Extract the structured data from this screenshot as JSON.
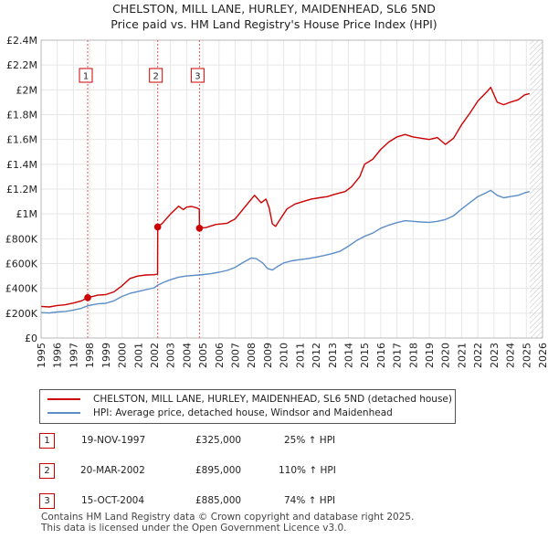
{
  "chart_data": {
    "type": "line",
    "title": "CHELSTON, MILL LANE, HURLEY, MAIDENHEAD, SL6 5ND",
    "subtitle": "Price paid vs. HM Land Registry's House Price Index (HPI)",
    "xlim": [
      1995,
      2026
    ],
    "ylim": [
      0,
      2400000
    ],
    "y_ticks": [
      0,
      200000,
      400000,
      600000,
      800000,
      1000000,
      1200000,
      1400000,
      1600000,
      1800000,
      2000000,
      2200000,
      2400000
    ],
    "y_tick_labels": [
      "£0",
      "£200K",
      "£400K",
      "£600K",
      "£800K",
      "£1M",
      "£1.2M",
      "£1.4M",
      "£1.6M",
      "£1.8M",
      "£2M",
      "£2.2M",
      "£2.4M"
    ],
    "x_ticks": [
      1995,
      1996,
      1997,
      1998,
      1999,
      2000,
      2001,
      2002,
      2003,
      2004,
      2005,
      2006,
      2007,
      2008,
      2009,
      2010,
      2011,
      2012,
      2013,
      2014,
      2015,
      2016,
      2017,
      2018,
      2019,
      2020,
      2021,
      2022,
      2023,
      2024,
      2025,
      2026
    ],
    "grid": true,
    "series": [
      {
        "name": "CHELSTON, MILL LANE, HURLEY, MAIDENHEAD, SL6 5ND (detached house)",
        "color": "#cc0000",
        "points": [
          [
            1995.0,
            255000
          ],
          [
            1995.5,
            250000
          ],
          [
            1996.0,
            262000
          ],
          [
            1996.5,
            268000
          ],
          [
            1997.0,
            282000
          ],
          [
            1997.5,
            300000
          ],
          [
            1997.88,
            325000
          ],
          [
            1998.5,
            345000
          ],
          [
            1999.0,
            350000
          ],
          [
            1999.5,
            372000
          ],
          [
            2000.0,
            420000
          ],
          [
            2000.5,
            480000
          ],
          [
            2001.0,
            500000
          ],
          [
            2001.5,
            508000
          ],
          [
            2002.0,
            510000
          ],
          [
            2002.2,
            515000
          ],
          [
            2002.21,
            895000
          ],
          [
            2002.5,
            925000
          ],
          [
            2003.0,
            1000000
          ],
          [
            2003.5,
            1062000
          ],
          [
            2003.8,
            1035000
          ],
          [
            2004.0,
            1055000
          ],
          [
            2004.3,
            1060000
          ],
          [
            2004.6,
            1050000
          ],
          [
            2004.78,
            1038000
          ],
          [
            2004.79,
            885000
          ],
          [
            2005.2,
            890000
          ],
          [
            2005.8,
            915000
          ],
          [
            2006.5,
            925000
          ],
          [
            2007.0,
            960000
          ],
          [
            2007.5,
            1040000
          ],
          [
            2008.0,
            1120000
          ],
          [
            2008.2,
            1150000
          ],
          [
            2008.6,
            1090000
          ],
          [
            2008.9,
            1120000
          ],
          [
            2009.1,
            1050000
          ],
          [
            2009.3,
            920000
          ],
          [
            2009.5,
            900000
          ],
          [
            2009.7,
            940000
          ],
          [
            2010.2,
            1040000
          ],
          [
            2010.7,
            1080000
          ],
          [
            2011.2,
            1100000
          ],
          [
            2011.7,
            1120000
          ],
          [
            2012.2,
            1130000
          ],
          [
            2012.7,
            1140000
          ],
          [
            2013.2,
            1160000
          ],
          [
            2013.8,
            1180000
          ],
          [
            2014.2,
            1220000
          ],
          [
            2014.7,
            1300000
          ],
          [
            2015.0,
            1400000
          ],
          [
            2015.5,
            1440000
          ],
          [
            2016.0,
            1520000
          ],
          [
            2016.5,
            1580000
          ],
          [
            2017.0,
            1620000
          ],
          [
            2017.5,
            1640000
          ],
          [
            2018.0,
            1620000
          ],
          [
            2018.5,
            1610000
          ],
          [
            2019.0,
            1600000
          ],
          [
            2019.5,
            1615000
          ],
          [
            2020.0,
            1560000
          ],
          [
            2020.5,
            1610000
          ],
          [
            2021.0,
            1720000
          ],
          [
            2021.5,
            1810000
          ],
          [
            2022.0,
            1910000
          ],
          [
            2022.6,
            1990000
          ],
          [
            2022.8,
            2020000
          ],
          [
            2023.2,
            1900000
          ],
          [
            2023.6,
            1880000
          ],
          [
            2024.0,
            1900000
          ],
          [
            2024.5,
            1920000
          ],
          [
            2024.9,
            1960000
          ],
          [
            2025.2,
            1970000
          ]
        ]
      },
      {
        "name": "HPI: Average price, detached house, Windsor and Maidenhead",
        "color": "#5b8ec7",
        "points": [
          [
            1995.0,
            205000
          ],
          [
            1995.5,
            202000
          ],
          [
            1996.0,
            210000
          ],
          [
            1996.5,
            214000
          ],
          [
            1997.0,
            225000
          ],
          [
            1997.5,
            240000
          ],
          [
            1997.88,
            260000
          ],
          [
            1998.5,
            275000
          ],
          [
            1999.0,
            280000
          ],
          [
            1999.5,
            300000
          ],
          [
            2000.0,
            335000
          ],
          [
            2000.5,
            360000
          ],
          [
            2001.0,
            375000
          ],
          [
            2001.5,
            390000
          ],
          [
            2002.0,
            405000
          ],
          [
            2002.21,
            426000
          ],
          [
            2002.6,
            450000
          ],
          [
            2003.0,
            470000
          ],
          [
            2003.5,
            490000
          ],
          [
            2004.0,
            500000
          ],
          [
            2004.79,
            508000
          ],
          [
            2005.5,
            518000
          ],
          [
            2006.0,
            530000
          ],
          [
            2006.5,
            545000
          ],
          [
            2007.0,
            570000
          ],
          [
            2007.5,
            610000
          ],
          [
            2008.0,
            645000
          ],
          [
            2008.3,
            640000
          ],
          [
            2008.7,
            605000
          ],
          [
            2009.0,
            560000
          ],
          [
            2009.3,
            548000
          ],
          [
            2009.6,
            575000
          ],
          [
            2010.0,
            605000
          ],
          [
            2010.5,
            622000
          ],
          [
            2011.0,
            632000
          ],
          [
            2011.5,
            640000
          ],
          [
            2012.0,
            652000
          ],
          [
            2012.5,
            665000
          ],
          [
            2013.0,
            680000
          ],
          [
            2013.5,
            700000
          ],
          [
            2014.0,
            740000
          ],
          [
            2014.5,
            785000
          ],
          [
            2015.0,
            820000
          ],
          [
            2015.5,
            845000
          ],
          [
            2016.0,
            885000
          ],
          [
            2016.5,
            910000
          ],
          [
            2017.0,
            930000
          ],
          [
            2017.5,
            945000
          ],
          [
            2018.0,
            940000
          ],
          [
            2018.5,
            935000
          ],
          [
            2019.0,
            932000
          ],
          [
            2019.5,
            940000
          ],
          [
            2020.0,
            955000
          ],
          [
            2020.5,
            985000
          ],
          [
            2021.0,
            1040000
          ],
          [
            2021.5,
            1090000
          ],
          [
            2022.0,
            1140000
          ],
          [
            2022.5,
            1170000
          ],
          [
            2022.8,
            1190000
          ],
          [
            2023.2,
            1150000
          ],
          [
            2023.6,
            1130000
          ],
          [
            2024.0,
            1140000
          ],
          [
            2024.5,
            1150000
          ],
          [
            2024.9,
            1170000
          ],
          [
            2025.2,
            1180000
          ]
        ]
      }
    ],
    "sales": [
      {
        "id": "1",
        "x": 1997.88,
        "price": 325000
      },
      {
        "id": "2",
        "x": 2002.21,
        "price": 895000
      },
      {
        "id": "3",
        "x": 2004.79,
        "price": 885000
      }
    ],
    "forecast_start": 2025.2
  },
  "legend": {
    "property_label": "CHELSTON, MILL LANE, HURLEY, MAIDENHEAD, SL6 5ND (detached house)",
    "hpi_label": "HPI: Average price, detached house, Windsor and Maidenhead"
  },
  "sales_table": [
    {
      "num": "1",
      "date": "19-NOV-1997",
      "price": "£325,000",
      "hpi": "25% ↑ HPI"
    },
    {
      "num": "2",
      "date": "20-MAR-2002",
      "price": "£895,000",
      "hpi": "110% ↑ HPI"
    },
    {
      "num": "3",
      "date": "15-OCT-2004",
      "price": "£885,000",
      "hpi": "74% ↑ HPI"
    }
  ],
  "footer": {
    "line1": "Contains HM Land Registry data © Crown copyright and database right 2025.",
    "line2": "This data is licensed under the Open Government Licence v3.0."
  },
  "colors": {
    "property": "#cc0000",
    "hpi": "#5b8ec7",
    "grid": "#e6e6e6",
    "plot_bg": "#ffffff"
  }
}
